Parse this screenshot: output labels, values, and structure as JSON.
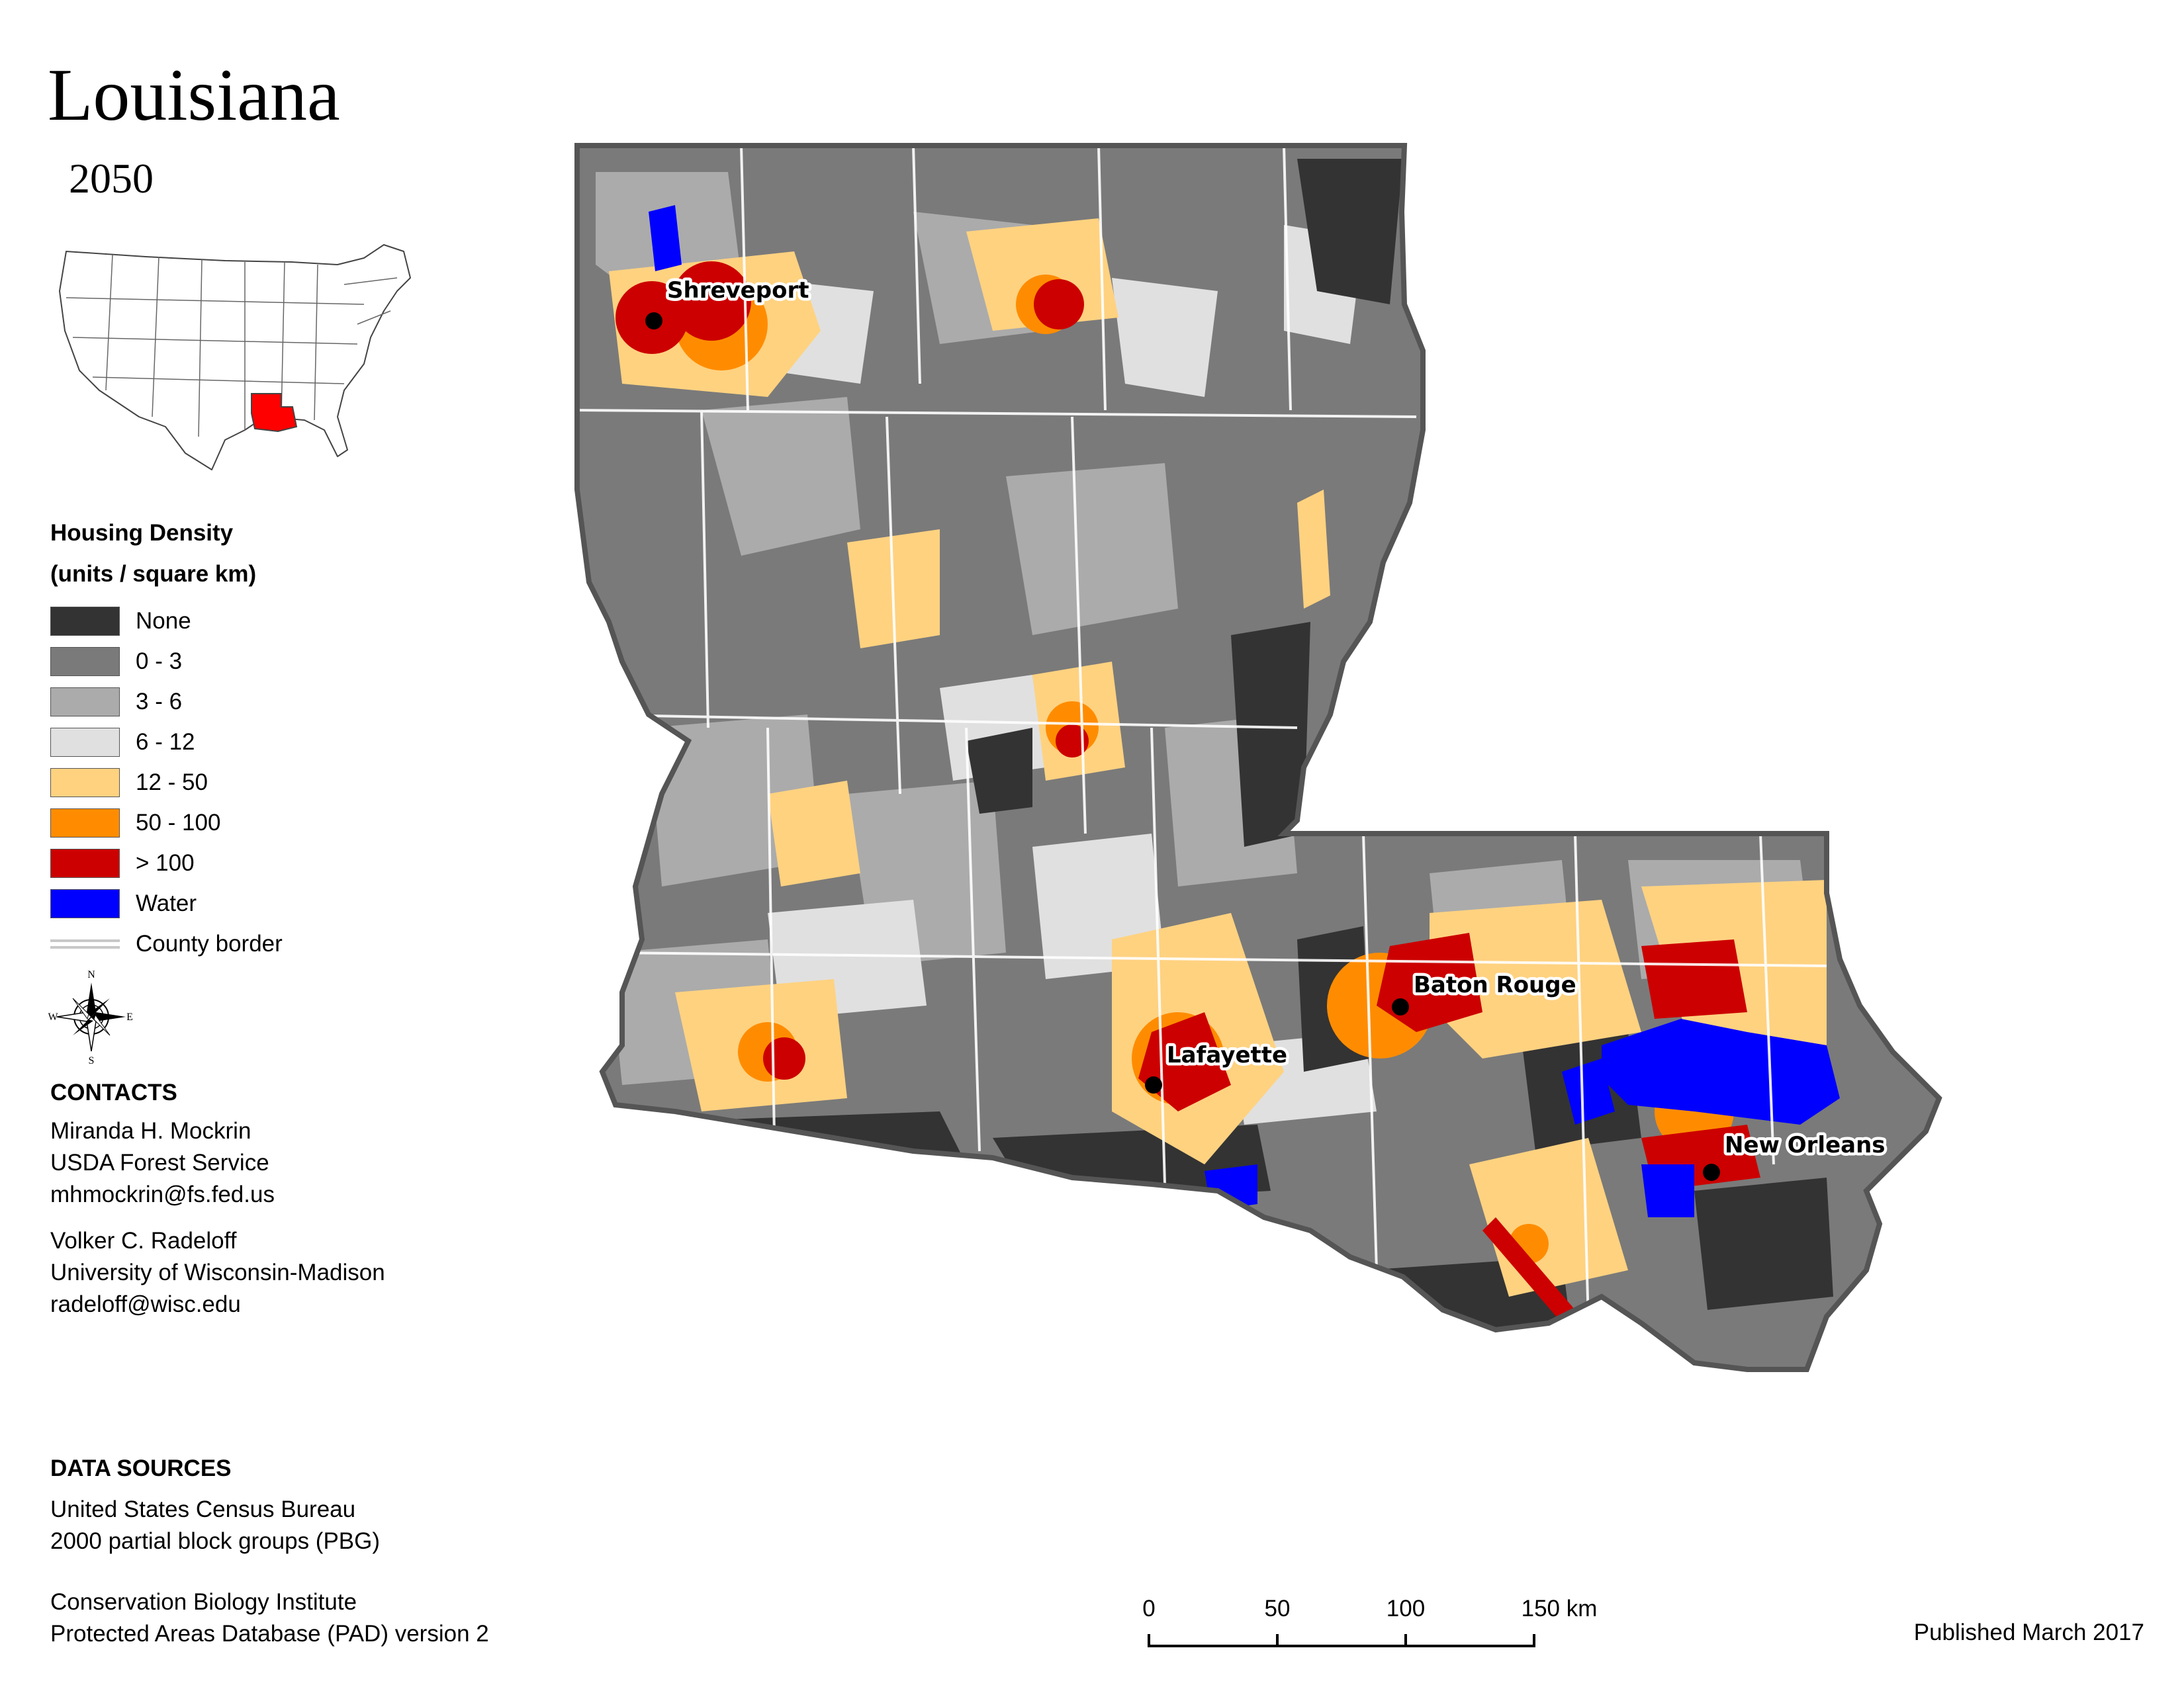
{
  "title": "Louisiana",
  "subtitle": "2050",
  "legend": {
    "title_line1": "Housing Density",
    "title_line2": "(units / square km)",
    "items": [
      {
        "label": "None",
        "color": "#333333"
      },
      {
        "label": "0 - 3",
        "color": "#7a7a7a"
      },
      {
        "label": "3 - 6",
        "color": "#ababab"
      },
      {
        "label": "6 - 12",
        "color": "#e0e0e0"
      },
      {
        "label": "12 - 50",
        "color": "#ffd280"
      },
      {
        "label": "50 - 100",
        "color": "#ff8c00"
      },
      {
        "label": "> 100",
        "color": "#cc0000"
      },
      {
        "label": "Water",
        "color": "#0000ff"
      }
    ],
    "border_label": "County border"
  },
  "compass": {
    "n": "N",
    "s": "S",
    "e": "E",
    "w": "W"
  },
  "contacts": {
    "heading": "CONTACTS",
    "person1": [
      "Miranda H. Mockrin",
      "USDA Forest Service",
      "mhmockrin@fs.fed.us"
    ],
    "person2": [
      "Volker C. Radeloff",
      "University of Wisconsin-Madison",
      "radeloff@wisc.edu"
    ]
  },
  "data_sources": {
    "heading": "DATA SOURCES",
    "source1": [
      "United States Census Bureau",
      "2000 partial block groups (PBG)"
    ],
    "source2": [
      "Conservation Biology Institute",
      "Protected Areas Database (PAD) version 2"
    ]
  },
  "cities": [
    "Shreveport",
    "Baton Rouge",
    "Lafayette",
    "New Orleans"
  ],
  "scale": {
    "ticks": [
      "0",
      "50",
      "100"
    ],
    "last": "150 km"
  },
  "published": "Published March 2017",
  "inset_highlight_color": "#ff0000"
}
